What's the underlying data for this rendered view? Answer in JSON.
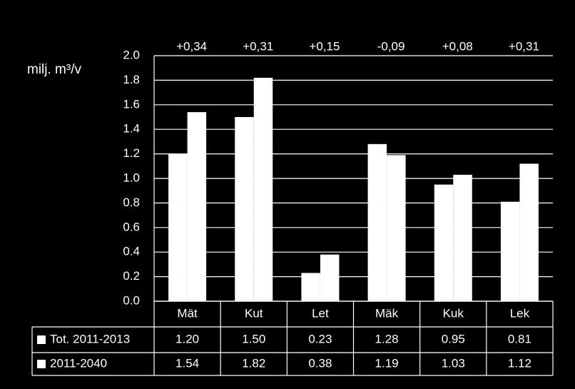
{
  "chart_data": {
    "type": "bar",
    "y_label": "milj. m³/v",
    "categories": [
      "Mät",
      "Kut",
      "Let",
      "Mäk",
      "Kuk",
      "Lek"
    ],
    "annotations": [
      "+0,34",
      "+0,31",
      "+0,15",
      "-0,09",
      "+0,08",
      "+0,31"
    ],
    "series": [
      {
        "name": "Tot. 2011-2013",
        "color": "#ffffff",
        "values": [
          1.2,
          1.5,
          0.23,
          1.28,
          0.95,
          0.81
        ],
        "value_labels": [
          "1.20",
          "1.50",
          "0.23",
          "1.28",
          "0.95",
          "0.81"
        ]
      },
      {
        "name": "2011-2040",
        "color": "#ffffff",
        "values": [
          1.54,
          1.82,
          0.38,
          1.19,
          1.03,
          1.12
        ],
        "value_labels": [
          "1.54",
          "1.82",
          "0.38",
          "1.19",
          "1.03",
          "1.12"
        ]
      }
    ],
    "ylim": [
      0,
      2
    ],
    "yticks": [
      {
        "value": 0,
        "label": "0.0"
      },
      0.2,
      0.4,
      0.6,
      0.8,
      {
        "value": 1,
        "label": "1.0"
      },
      1.2,
      1.4,
      1.6,
      1.8,
      {
        "value": 2,
        "label": "2.0"
      }
    ],
    "grid": true
  }
}
